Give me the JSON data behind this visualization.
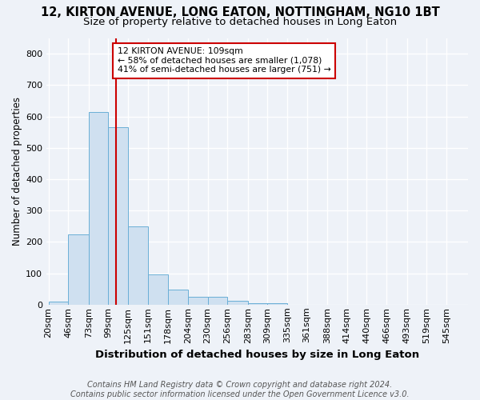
{
  "title": "12, KIRTON AVENUE, LONG EATON, NOTTINGHAM, NG10 1BT",
  "subtitle": "Size of property relative to detached houses in Long Eaton",
  "xlabel": "Distribution of detached houses by size in Long Eaton",
  "ylabel": "Number of detached properties",
  "bin_edges": [
    20,
    46,
    73,
    99,
    125,
    151,
    178,
    204,
    230,
    256,
    283,
    309,
    335,
    361,
    388,
    414,
    440,
    466,
    493,
    519,
    545
  ],
  "bar_heights": [
    10,
    225,
    615,
    565,
    250,
    97,
    48,
    25,
    25,
    12,
    5,
    5,
    0,
    0,
    0,
    0,
    0,
    0,
    0,
    0
  ],
  "bar_color": "#cfe0f0",
  "bar_edgecolor": "#6aafd6",
  "vline_x": 109,
  "vline_color": "#cc0000",
  "annotation_text": "12 KIRTON AVENUE: 109sqm\n← 58% of detached houses are smaller (1,078)\n41% of semi-detached houses are larger (751) →",
  "annotation_box_color": "white",
  "annotation_box_edgecolor": "#cc0000",
  "ylim": [
    0,
    850
  ],
  "yticks": [
    0,
    100,
    200,
    300,
    400,
    500,
    600,
    700,
    800
  ],
  "footnote": "Contains HM Land Registry data © Crown copyright and database right 2024.\nContains public sector information licensed under the Open Government Licence v3.0.",
  "background_color": "#eef2f8",
  "grid_color": "white",
  "title_fontsize": 10.5,
  "subtitle_fontsize": 9.5,
  "xlabel_fontsize": 9.5,
  "ylabel_fontsize": 8.5,
  "tick_fontsize": 8,
  "annotation_fontsize": 7.8,
  "footnote_fontsize": 7
}
